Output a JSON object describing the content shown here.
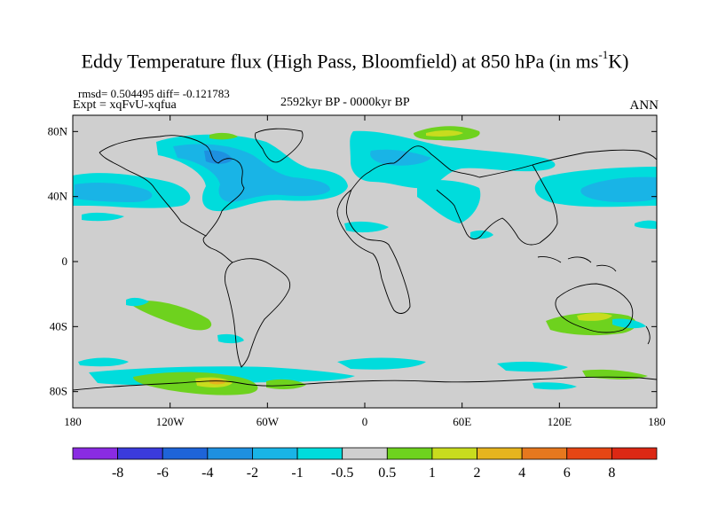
{
  "header": {
    "title_main": "Eddy Temperature flux (High Pass, Bloomfield) at 850 hPa (in ms",
    "title_sup": "-1",
    "title_end": "K)",
    "stats": "rmsd= 0.504495 diff= -0.121783",
    "experiment": "Expt = xqFvU-xqfua",
    "period": "2592kyr BP - 0000kyr BP",
    "season": "ANN"
  },
  "map": {
    "projection": "cylindrical equidistant",
    "lon_range": [
      -180,
      180
    ],
    "lat_range": [
      -90,
      90
    ],
    "lat_labels": [
      {
        "lat": 80,
        "text": "80N"
      },
      {
        "lat": 40,
        "text": "40N"
      },
      {
        "lat": 0,
        "text": "0"
      },
      {
        "lat": -40,
        "text": "40S"
      },
      {
        "lat": -80,
        "text": "80S"
      }
    ],
    "lon_labels": [
      {
        "lon": -180,
        "text": "180"
      },
      {
        "lon": -120,
        "text": "120W"
      },
      {
        "lon": -60,
        "text": "60W"
      },
      {
        "lon": 0,
        "text": "0"
      },
      {
        "lon": 60,
        "text": "60E"
      },
      {
        "lon": 120,
        "text": "120E"
      },
      {
        "lon": 180,
        "text": "180"
      }
    ],
    "background_color": "#cfcfcf",
    "coastline_color": "#000000"
  },
  "colorbar": {
    "labels": [
      "-8",
      "-6",
      "-4",
      "-2",
      "-1",
      "-0.5",
      "0.5",
      "1",
      "2",
      "4",
      "6",
      "8"
    ],
    "colors": [
      "#8a2be2",
      "#3b3bdc",
      "#1e64d8",
      "#1e90e0",
      "#19b4e6",
      "#00dcdc",
      "#cfcfcf",
      "#6ed21e",
      "#c8dc1e",
      "#e6b41e",
      "#e6781e",
      "#e64614",
      "#dc2814"
    ]
  },
  "anomalies": [
    {
      "name": "north-atlantic-negative",
      "color": "#00dcdc"
    },
    {
      "name": "north-atlantic-core",
      "color": "#19b4e6"
    },
    {
      "name": "north-pacific-negative",
      "color": "#00dcdc"
    },
    {
      "name": "north-pacific-core",
      "color": "#19b4e6"
    },
    {
      "name": "eurasia-negative",
      "color": "#00dcdc"
    },
    {
      "name": "arctic-positive",
      "color": "#6ed21e"
    },
    {
      "name": "southern-ocean-positive",
      "color": "#6ed21e"
    },
    {
      "name": "southern-ocean-strong",
      "color": "#c8dc1e"
    },
    {
      "name": "australia-positive",
      "color": "#6ed21e"
    }
  ]
}
